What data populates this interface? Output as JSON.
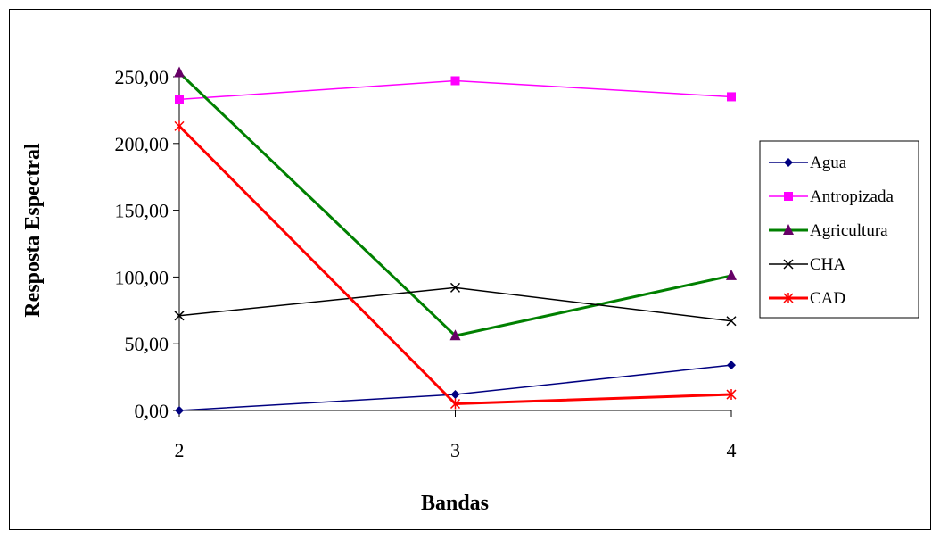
{
  "chart_data": {
    "type": "line",
    "title": "",
    "xlabel": "Bandas",
    "ylabel": "Resposta Espectral",
    "x": [
      "2",
      "3",
      "4"
    ],
    "ylim": [
      0,
      250
    ],
    "yticks": [
      "0,00",
      "50,00",
      "100,00",
      "150,00",
      "200,00",
      "250,00"
    ],
    "grid": false,
    "legend_position": "right",
    "series": [
      {
        "name": "Agua",
        "values": [
          0,
          12,
          34
        ],
        "color": "#000080",
        "marker": "diamond"
      },
      {
        "name": "Antropizada",
        "values": [
          233,
          247,
          235
        ],
        "color": "#FF00FF",
        "marker": "square"
      },
      {
        "name": "Agricultura",
        "values": [
          253,
          56,
          101
        ],
        "color": "#008000",
        "marker": "triangle",
        "marker_color": "#660066"
      },
      {
        "name": "CHA",
        "values": [
          71,
          92,
          67
        ],
        "color": "#000000",
        "marker": "x"
      },
      {
        "name": "CAD",
        "values": [
          213,
          5,
          12
        ],
        "color": "#FF0000",
        "marker": "star"
      }
    ]
  }
}
